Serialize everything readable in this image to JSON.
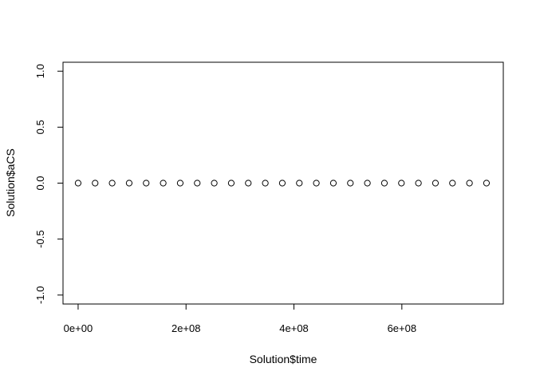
{
  "chart_data": {
    "type": "scatter",
    "title": "",
    "xlabel": "Solution$time",
    "ylabel": "Solution$aCS",
    "xlim": [
      -28000000,
      788000000
    ],
    "ylim": [
      -1.08,
      1.08
    ],
    "x_ticks": [
      0,
      200000000,
      400000000,
      600000000
    ],
    "x_tick_labels": [
      "0e+00",
      "2e+08",
      "4e+08",
      "6e+08"
    ],
    "y_ticks": [
      -1.0,
      -0.5,
      0.0,
      0.5,
      1.0
    ],
    "y_tick_labels": [
      "-1.0",
      "-0.5",
      "0.0",
      "0.5",
      "1.0"
    ],
    "grid": false,
    "legend": "none",
    "marker": "open-circle",
    "series": [
      {
        "x": [
          0,
          31536000,
          63072000,
          94608000,
          126144000,
          157680000,
          189216000,
          220752000,
          252288000,
          283824000,
          315360000,
          346896000,
          378432000,
          409968000,
          441504000,
          473040000,
          504576000,
          536112000,
          567648000,
          599184000,
          630720000,
          662256000,
          693792000,
          725328000,
          756864000
        ],
        "y": [
          0,
          0,
          0,
          0,
          0,
          0,
          0,
          0,
          0,
          0,
          0,
          0,
          0,
          0,
          0,
          0,
          0,
          0,
          0,
          0,
          0,
          0,
          0,
          0,
          0
        ]
      }
    ]
  }
}
